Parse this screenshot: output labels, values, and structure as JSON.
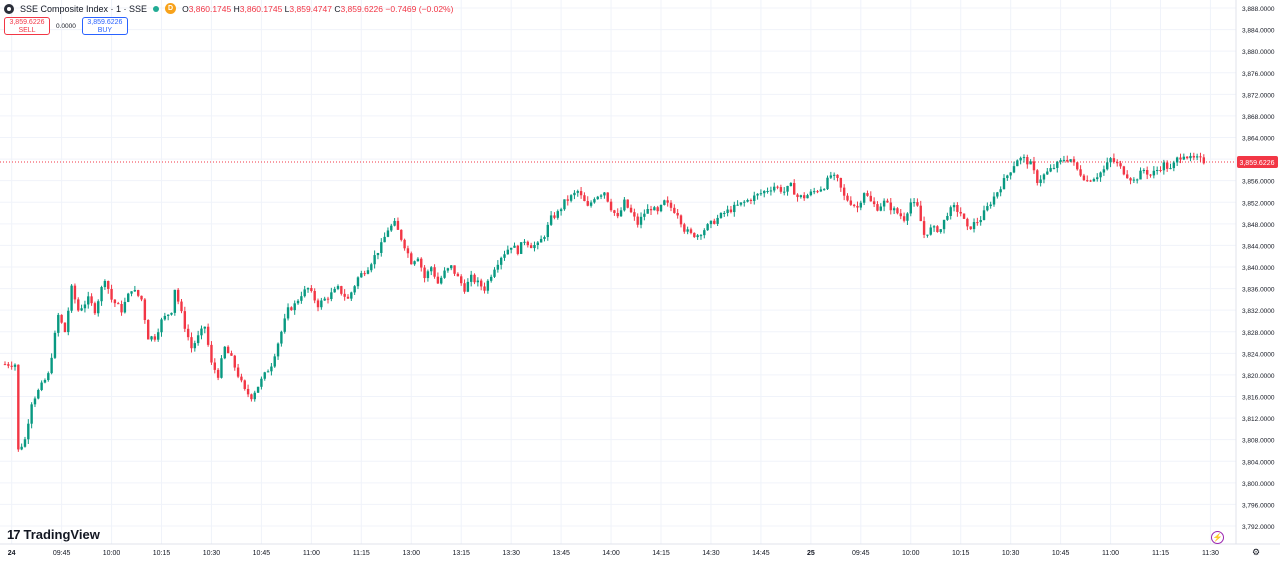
{
  "header": {
    "symbol_title": "SSE Composite Index · 1 · SSE",
    "badge_letter": "D",
    "o_label": "O",
    "o_value": "3,860.1745",
    "h_label": "H",
    "h_value": "3,860.1745",
    "l_label": "L",
    "l_value": "3,859.4747",
    "c_label": "C",
    "c_value": "3,859.6226",
    "change": "−0.7469 (−0.02%)"
  },
  "trade": {
    "sell_price": "3,859.6226",
    "sell_label": "SELL",
    "spread": "0.0000",
    "buy_price": "3,859.6226",
    "buy_label": "BUY"
  },
  "brand": {
    "name": "TradingView",
    "mark": "17"
  },
  "colors": {
    "up": "#089981",
    "down": "#f23645",
    "grid": "#f0f3fa",
    "price_line": "#f23645"
  },
  "chart_data": {
    "type": "candlestick",
    "title": "SSE Composite Index · 1 · SSE",
    "last_price": 3859.6226,
    "last_price_label": "3,859.6226",
    "ylim": [
      3790,
      3889
    ],
    "y_ticks": [
      3792,
      3796,
      3800,
      3804,
      3808,
      3812,
      3816,
      3820,
      3824,
      3828,
      3832,
      3836,
      3840,
      3844,
      3848,
      3852,
      3856,
      3860,
      3864,
      3868,
      3872,
      3876,
      3880,
      3884,
      3888
    ],
    "y_tick_labels": [
      "3,792.0000",
      "3,796.0000",
      "3,800.0000",
      "3,804.0000",
      "3,808.0000",
      "3,812.0000",
      "3,816.0000",
      "3,820.0000",
      "3,824.0000",
      "3,828.0000",
      "3,832.0000",
      "3,836.0000",
      "3,840.0000",
      "3,844.0000",
      "3,848.0000",
      "3,852.0000",
      "3,856.0000",
      "3,860.0000",
      "3,864.0000",
      "3,868.0000",
      "3,872.0000",
      "3,876.0000",
      "3,880.0000",
      "3,884.0000",
      "3,888.0000"
    ],
    "x_tick_labels": [
      "24",
      "09:45",
      "10:00",
      "10:15",
      "10:30",
      "10:45",
      "11:00",
      "11:15",
      "13:00",
      "13:15",
      "13:30",
      "13:45",
      "14:00",
      "14:15",
      "14:30",
      "14:45",
      "25",
      "09:45",
      "10:00",
      "10:15",
      "10:30",
      "10:45",
      "11:00",
      "11:15",
      "11:30"
    ],
    "x_tick_bars": [
      2,
      17,
      32,
      47,
      62,
      77,
      92,
      107,
      122,
      137,
      152,
      167,
      182,
      197,
      212,
      227,
      242,
      257,
      272,
      287,
      302,
      317,
      332,
      347,
      362
    ],
    "bar_count": 365,
    "path_points": [
      [
        0,
        3822
      ],
      [
        3,
        3822
      ],
      [
        4,
        3806
      ],
      [
        6,
        3808
      ],
      [
        8,
        3815
      ],
      [
        11,
        3818
      ],
      [
        13,
        3820
      ],
      [
        16,
        3831
      ],
      [
        18,
        3828
      ],
      [
        20,
        3836
      ],
      [
        22,
        3832
      ],
      [
        25,
        3834
      ],
      [
        27,
        3832
      ],
      [
        30,
        3838
      ],
      [
        32,
        3834
      ],
      [
        35,
        3832
      ],
      [
        38,
        3836
      ],
      [
        41,
        3834
      ],
      [
        43,
        3827
      ],
      [
        45,
        3827
      ],
      [
        47,
        3830
      ],
      [
        50,
        3832
      ],
      [
        51,
        3836
      ],
      [
        54,
        3829
      ],
      [
        56,
        3825
      ],
      [
        60,
        3829
      ],
      [
        62,
        3822
      ],
      [
        64,
        3820
      ],
      [
        66,
        3825
      ],
      [
        68,
        3823
      ],
      [
        70,
        3820
      ],
      [
        72,
        3817
      ],
      [
        74,
        3816
      ],
      [
        77,
        3819
      ],
      [
        80,
        3822
      ],
      [
        83,
        3828
      ],
      [
        85,
        3832
      ],
      [
        87,
        3833
      ],
      [
        89,
        3835
      ],
      [
        91,
        3836
      ],
      [
        94,
        3833
      ],
      [
        96,
        3834
      ],
      [
        98,
        3835
      ],
      [
        100,
        3836
      ],
      [
        103,
        3834
      ],
      [
        106,
        3838
      ],
      [
        109,
        3840
      ],
      [
        111,
        3842
      ],
      [
        113,
        3844
      ],
      [
        115,
        3847
      ],
      [
        117,
        3848
      ],
      [
        120,
        3844
      ],
      [
        122,
        3841
      ],
      [
        124,
        3842
      ],
      [
        126,
        3838
      ],
      [
        128,
        3840
      ],
      [
        130,
        3837
      ],
      [
        132,
        3839
      ],
      [
        134,
        3840
      ],
      [
        136,
        3838
      ],
      [
        138,
        3836
      ],
      [
        140,
        3838
      ],
      [
        142,
        3837
      ],
      [
        144,
        3836
      ],
      [
        147,
        3840
      ],
      [
        149,
        3842
      ],
      [
        152,
        3844
      ],
      [
        154,
        3843
      ],
      [
        156,
        3845
      ],
      [
        158,
        3844
      ],
      [
        160,
        3844
      ],
      [
        162,
        3846
      ],
      [
        164,
        3849
      ],
      [
        166,
        3850
      ],
      [
        168,
        3852
      ],
      [
        170,
        3853
      ],
      [
        172,
        3854
      ],
      [
        175,
        3851
      ],
      [
        177,
        3853
      ],
      [
        180,
        3854
      ],
      [
        182,
        3851
      ],
      [
        184,
        3849
      ],
      [
        186,
        3852
      ],
      [
        188,
        3850
      ],
      [
        190,
        3848
      ],
      [
        192,
        3850
      ],
      [
        194,
        3851
      ],
      [
        196,
        3850
      ],
      [
        198,
        3852
      ],
      [
        200,
        3851
      ],
      [
        202,
        3850
      ],
      [
        204,
        3847
      ],
      [
        206,
        3846
      ],
      [
        208,
        3846
      ],
      [
        210,
        3847
      ],
      [
        212,
        3848
      ],
      [
        214,
        3849
      ],
      [
        216,
        3850
      ],
      [
        219,
        3851
      ],
      [
        222,
        3852
      ],
      [
        225,
        3853
      ],
      [
        228,
        3854
      ],
      [
        231,
        3855
      ],
      [
        234,
        3854
      ],
      [
        236,
        3855
      ],
      [
        238,
        3853
      ],
      [
        240,
        3853
      ],
      [
        243,
        3854
      ],
      [
        246,
        3855
      ],
      [
        248,
        3857
      ],
      [
        250,
        3856
      ],
      [
        252,
        3853
      ],
      [
        254,
        3852
      ],
      [
        256,
        3851
      ],
      [
        258,
        3854
      ],
      [
        260,
        3852
      ],
      [
        262,
        3851
      ],
      [
        264,
        3852
      ],
      [
        266,
        3851
      ],
      [
        268,
        3850
      ],
      [
        270,
        3849
      ],
      [
        272,
        3852
      ],
      [
        274,
        3851
      ],
      [
        276,
        3846
      ],
      [
        278,
        3847
      ],
      [
        281,
        3847
      ],
      [
        283,
        3850
      ],
      [
        285,
        3851
      ],
      [
        287,
        3850
      ],
      [
        289,
        3847
      ],
      [
        291,
        3848
      ],
      [
        293,
        3849
      ],
      [
        296,
        3852
      ],
      [
        298,
        3854
      ],
      [
        300,
        3856
      ],
      [
        302,
        3858
      ],
      [
        304,
        3860
      ],
      [
        306,
        3860
      ],
      [
        308,
        3859
      ],
      [
        310,
        3856
      ],
      [
        312,
        3857
      ],
      [
        314,
        3858
      ],
      [
        316,
        3859
      ],
      [
        318,
        3860
      ],
      [
        320,
        3860
      ],
      [
        322,
        3858
      ],
      [
        325,
        3856
      ],
      [
        328,
        3857
      ],
      [
        330,
        3858
      ],
      [
        332,
        3860
      ],
      [
        334,
        3859
      ],
      [
        337,
        3857
      ],
      [
        339,
        3856
      ],
      [
        342,
        3858
      ],
      [
        344,
        3857
      ],
      [
        346,
        3858
      ],
      [
        348,
        3859
      ],
      [
        350,
        3858
      ],
      [
        352,
        3860
      ],
      [
        354,
        3861
      ],
      [
        356,
        3860
      ],
      [
        358,
        3860
      ],
      [
        360,
        3859.6
      ]
    ]
  }
}
